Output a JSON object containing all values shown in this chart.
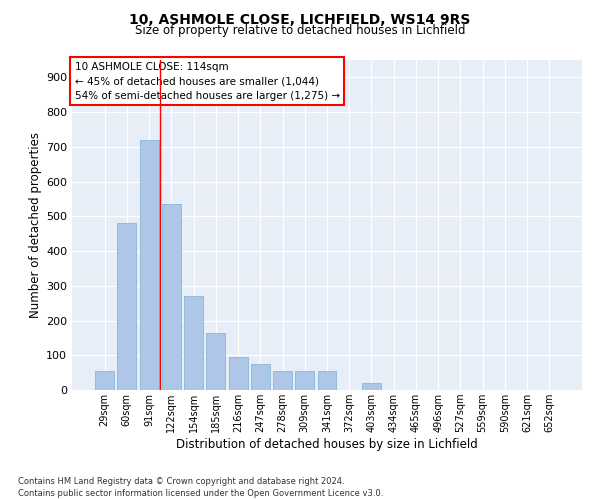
{
  "title1": "10, ASHMOLE CLOSE, LICHFIELD, WS14 9RS",
  "title2": "Size of property relative to detached houses in Lichfield",
  "xlabel": "Distribution of detached houses by size in Lichfield",
  "ylabel": "Number of detached properties",
  "categories": [
    "29sqm",
    "60sqm",
    "91sqm",
    "122sqm",
    "154sqm",
    "185sqm",
    "216sqm",
    "247sqm",
    "278sqm",
    "309sqm",
    "341sqm",
    "372sqm",
    "403sqm",
    "434sqm",
    "465sqm",
    "496sqm",
    "527sqm",
    "559sqm",
    "590sqm",
    "621sqm",
    "652sqm"
  ],
  "values": [
    55,
    480,
    720,
    535,
    270,
    165,
    95,
    75,
    55,
    55,
    55,
    0,
    20,
    0,
    0,
    0,
    0,
    0,
    0,
    0,
    0
  ],
  "bar_color": "#aec6e8",
  "bar_edgecolor": "#7aafd4",
  "bg_color": "#e8eef8",
  "grid_color": "#ffffff",
  "annotation_box_text": [
    "10 ASHMOLE CLOSE: 114sqm",
    "← 45% of detached houses are smaller (1,044)",
    "54% of semi-detached houses are larger (1,275) →"
  ],
  "footnote1": "Contains HM Land Registry data © Crown copyright and database right 2024.",
  "footnote2": "Contains public sector information licensed under the Open Government Licence v3.0.",
  "ylim": [
    0,
    950
  ],
  "yticks": [
    0,
    100,
    200,
    300,
    400,
    500,
    600,
    700,
    800,
    900
  ]
}
